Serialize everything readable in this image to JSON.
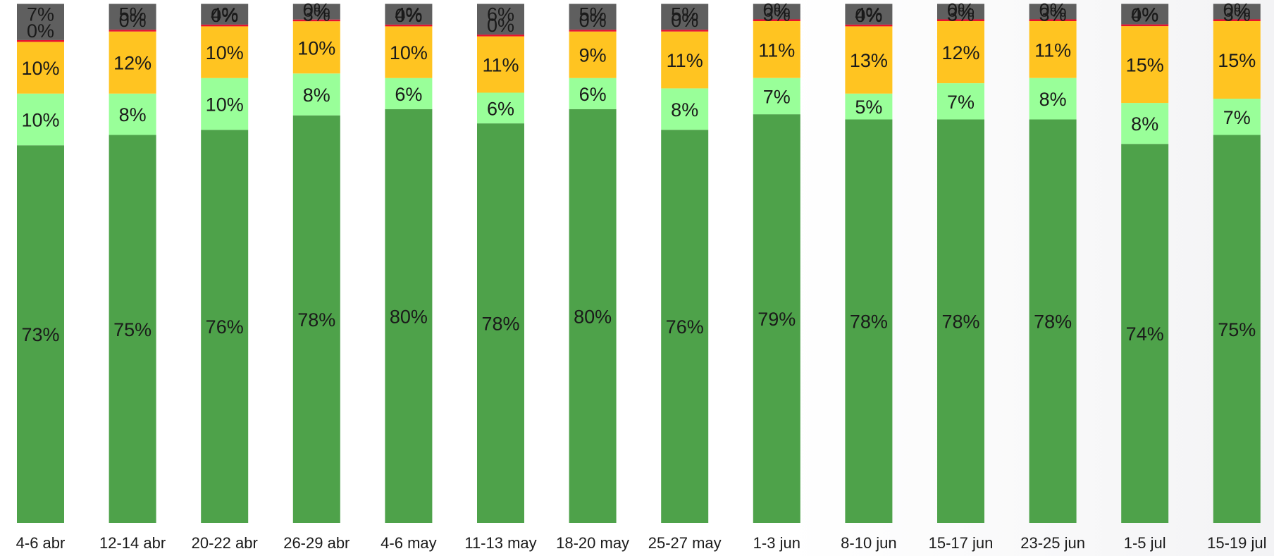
{
  "chart_data": {
    "type": "bar",
    "stacked": true,
    "percent": true,
    "title": "",
    "xlabel": "",
    "ylabel": "",
    "ylim": [
      0,
      100
    ],
    "grid": false,
    "categories": [
      "4-6 abr",
      "12-14 abr",
      "20-22 abr",
      "26-29 abr",
      "4-6 may",
      "11-13 may",
      "18-20 may",
      "25-27 may",
      "1-3 jun",
      "8-10 jun",
      "15-17 jun",
      "23-25 jun",
      "1-5 jul",
      "15-19 jul"
    ],
    "series": [
      {
        "color": "#4ea24a",
        "values": [
          73,
          75,
          76,
          78,
          80,
          78,
          80,
          76,
          79,
          78,
          78,
          78,
          74,
          75
        ]
      },
      {
        "color": "#99ff99",
        "values": [
          10,
          8,
          10,
          8,
          6,
          6,
          6,
          8,
          7,
          5,
          7,
          8,
          8,
          7
        ]
      },
      {
        "color": "#ffc421",
        "values": [
          10,
          12,
          10,
          10,
          10,
          11,
          9,
          11,
          11,
          13,
          12,
          11,
          15,
          15
        ]
      },
      {
        "color": "#e8112d",
        "values": [
          0,
          0,
          0,
          0,
          0,
          0,
          0,
          0,
          0,
          0,
          0,
          0,
          0,
          0
        ]
      },
      {
        "color": "#5f5f5f",
        "values": [
          7,
          5,
          4,
          3,
          4,
          6,
          5,
          5,
          3,
          4,
          3,
          3,
          4,
          3
        ]
      }
    ]
  }
}
